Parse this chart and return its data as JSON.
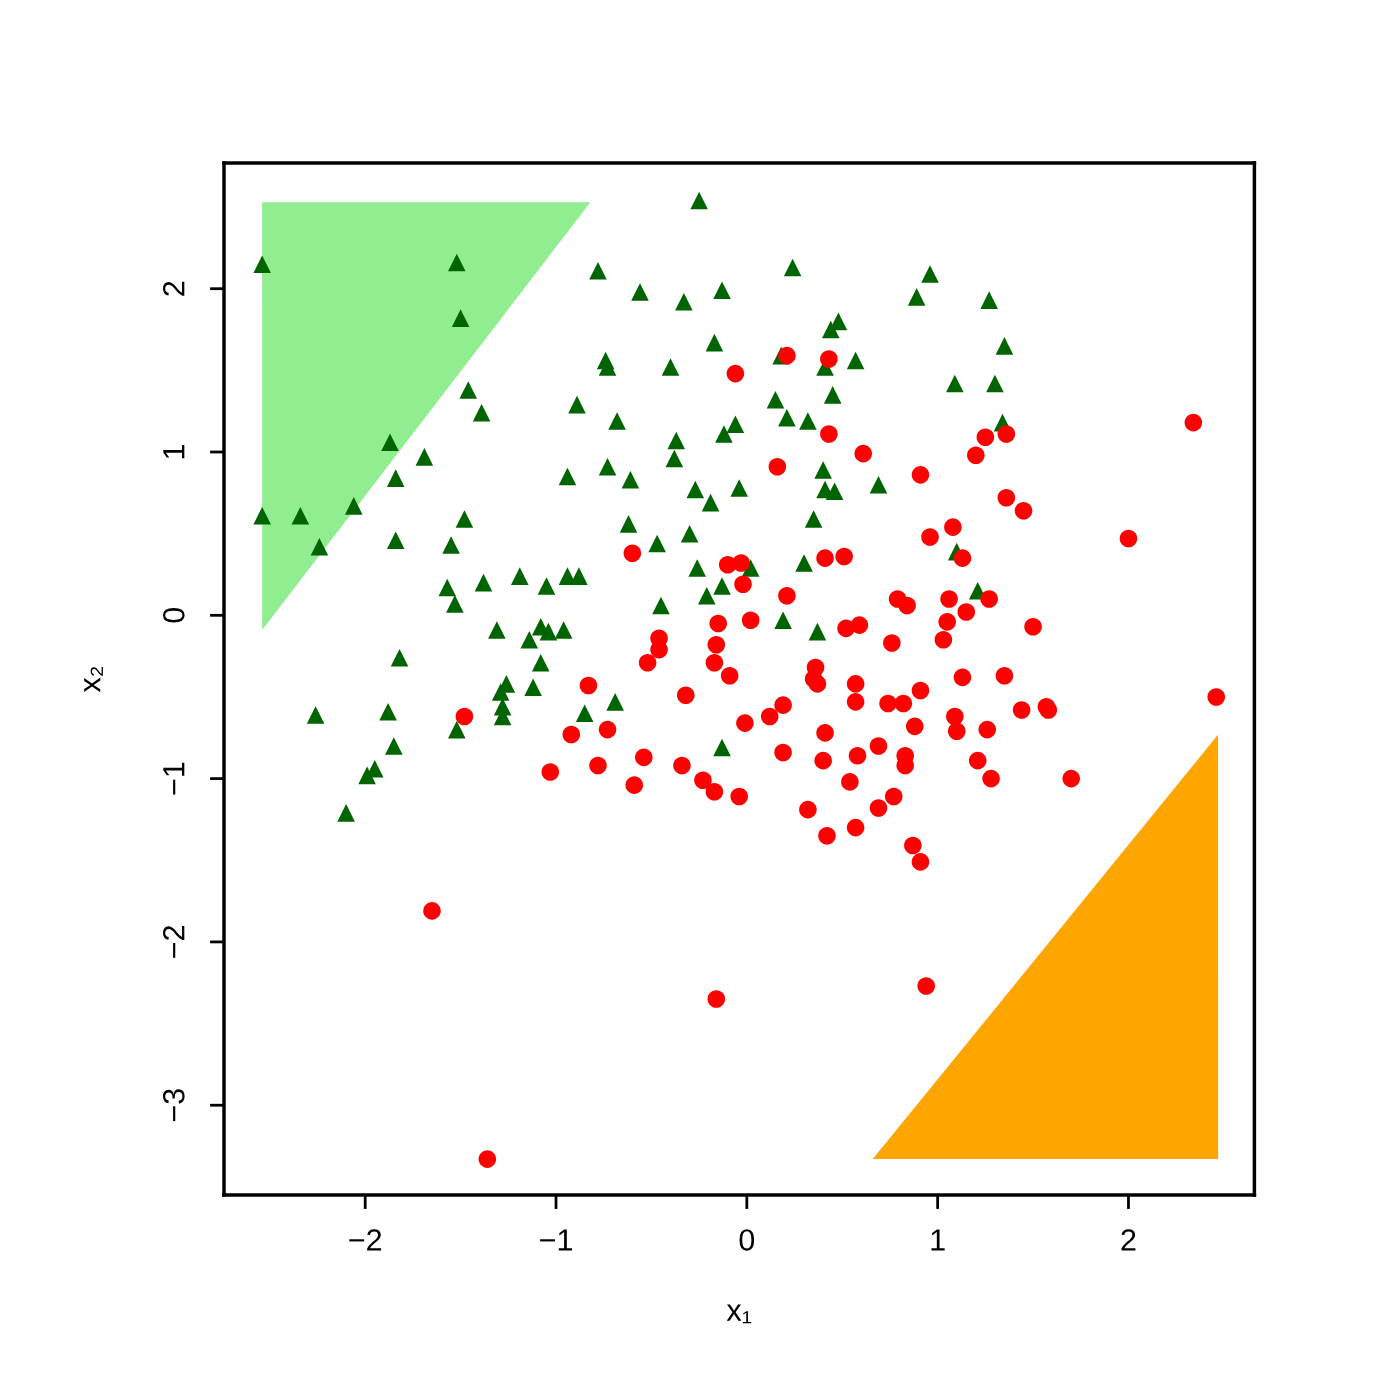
{
  "chart_data": {
    "type": "scatter",
    "xlabel": "x₁",
    "ylabel": "x₂",
    "xlim": [
      -2.74,
      2.66
    ],
    "ylim": [
      -3.55,
      2.77
    ],
    "xticks": [
      {
        "value": -2,
        "label": "−2"
      },
      {
        "value": -1,
        "label": "−1"
      },
      0,
      1,
      2
    ],
    "yticks": [
      {
        "value": -3,
        "label": "−3"
      },
      {
        "value": -2,
        "label": "−2"
      },
      {
        "value": -1,
        "label": "−1"
      },
      0,
      1,
      2
    ],
    "grid": false,
    "series": [
      {
        "type": "area",
        "color": "#90ee90",
        "x": [
          -2.54,
          -0.82,
          -2.54
        ],
        "values": [
          2.53,
          2.53,
          -0.09
        ]
      },
      {
        "type": "area",
        "color": "#ffa500",
        "x": [
          0.66,
          2.47,
          2.47
        ],
        "values": [
          -3.33,
          -3.33,
          -0.73
        ]
      },
      {
        "marker": "triangle",
        "color": "#006400",
        "x": [
          -2.54,
          -2.54,
          -2.34,
          -2.24,
          -2.26,
          -2.1,
          -1.99,
          -1.95,
          -1.88,
          -1.85,
          -1.87,
          -1.84,
          -1.84,
          -1.82,
          -1.69,
          -2.06,
          -1.52,
          -1.5,
          -1.46,
          -1.39,
          -1.48,
          -1.55,
          -1.57,
          -1.53,
          -1.38,
          -1.52,
          -1.31,
          -1.29,
          -1.28,
          -1.28,
          -1.26,
          -1.19,
          -1.14,
          -1.12,
          -1.08,
          -1.08,
          -1.05,
          -1.04,
          -0.96,
          -0.94,
          -0.94,
          -0.88,
          -0.89,
          -0.85,
          -0.78,
          -0.74,
          -0.73,
          -0.73,
          -0.68,
          -0.69,
          -0.62,
          -0.61,
          -0.56,
          -0.47,
          -0.45,
          -0.4,
          -0.38,
          -0.37,
          -0.33,
          -0.3,
          -0.26,
          -0.27,
          -0.25,
          -0.21,
          -0.19,
          -0.17,
          -0.13,
          -0.13,
          -0.13,
          -0.12,
          -0.06,
          -0.04,
          0.02,
          0.15,
          0.18,
          0.21,
          0.19,
          0.24,
          0.3,
          0.32,
          0.35,
          0.37,
          0.4,
          0.41,
          0.41,
          0.44,
          0.46,
          0.48,
          0.45,
          0.57,
          0.69,
          0.89,
          0.96,
          1.09,
          1.1,
          1.21,
          1.27,
          1.3,
          1.35,
          1.34
        ],
        "values": [
          2.15,
          0.61,
          0.61,
          0.42,
          -0.61,
          -1.21,
          -0.98,
          -0.94,
          -0.59,
          -0.8,
          1.06,
          0.84,
          0.46,
          -0.26,
          0.97,
          0.67,
          2.16,
          1.82,
          1.38,
          1.24,
          0.59,
          0.43,
          0.17,
          0.07,
          0.2,
          -0.7,
          -0.09,
          -0.47,
          -0.56,
          -0.62,
          -0.42,
          0.24,
          -0.15,
          -0.44,
          -0.29,
          -0.07,
          0.18,
          -0.1,
          -0.09,
          0.24,
          0.85,
          0.24,
          1.29,
          -0.6,
          2.11,
          1.56,
          1.52,
          0.91,
          1.19,
          -0.53,
          0.56,
          0.83,
          1.98,
          0.44,
          0.06,
          1.52,
          0.96,
          1.07,
          1.92,
          0.5,
          0.29,
          0.77,
          2.54,
          0.12,
          0.69,
          1.67,
          1.99,
          -0.81,
          0.18,
          1.11,
          1.17,
          0.78,
          0.29,
          1.32,
          1.59,
          1.21,
          -0.03,
          2.13,
          0.32,
          1.19,
          0.59,
          -0.1,
          0.89,
          1.52,
          0.77,
          1.75,
          0.76,
          1.8,
          1.35,
          1.56,
          0.8,
          1.95,
          2.09,
          1.42,
          0.39,
          0.15,
          1.93,
          1.42,
          1.65,
          1.18
        ]
      },
      {
        "marker": "circle",
        "color": "#ff0000",
        "x": [
          -1.65,
          -1.48,
          -1.36,
          -1.03,
          -0.92,
          -0.83,
          -0.78,
          -0.73,
          -0.6,
          -0.59,
          -0.54,
          -0.52,
          -0.46,
          -0.46,
          -0.32,
          -0.34,
          -0.23,
          -0.17,
          -0.17,
          -0.16,
          -0.15,
          -0.16,
          -0.1,
          -0.09,
          -0.06,
          -0.04,
          -0.03,
          -0.02,
          -0.01,
          0.02,
          0.12,
          0.16,
          0.19,
          0.19,
          0.21,
          0.21,
          0.32,
          0.35,
          0.36,
          0.37,
          0.41,
          0.41,
          0.4,
          0.42,
          0.43,
          0.43,
          0.51,
          0.52,
          0.54,
          0.57,
          0.57,
          0.57,
          0.58,
          0.59,
          0.61,
          0.69,
          0.69,
          0.76,
          0.77,
          0.74,
          0.79,
          0.82,
          0.83,
          0.83,
          0.84,
          0.87,
          0.88,
          0.91,
          0.91,
          0.91,
          0.94,
          0.96,
          1.03,
          1.05,
          1.06,
          1.08,
          1.09,
          1.1,
          1.13,
          1.13,
          1.15,
          1.2,
          1.21,
          1.25,
          1.26,
          1.27,
          1.28,
          1.35,
          1.36,
          1.36,
          1.44,
          1.45,
          1.5,
          1.57,
          1.58,
          1.7,
          2.0,
          2.34,
          2.46
        ],
        "values": [
          -1.81,
          -0.62,
          -3.33,
          -0.96,
          -0.73,
          -0.43,
          -0.92,
          -0.7,
          0.38,
          -1.04,
          -0.87,
          -0.29,
          -0.14,
          -0.21,
          -0.49,
          -0.92,
          -1.01,
          -1.08,
          -0.29,
          -0.18,
          -0.05,
          -2.35,
          0.31,
          -0.37,
          1.48,
          -1.11,
          0.32,
          0.19,
          -0.66,
          -0.03,
          -0.62,
          0.91,
          -0.55,
          -0.84,
          1.59,
          0.12,
          -1.19,
          -0.39,
          -0.32,
          -0.42,
          0.35,
          -0.72,
          -0.89,
          -1.35,
          1.57,
          1.11,
          0.36,
          -0.08,
          -1.02,
          -1.3,
          -0.42,
          -0.53,
          -0.86,
          -0.06,
          0.99,
          -0.8,
          -1.18,
          -0.17,
          -1.11,
          -0.54,
          0.1,
          -0.54,
          -0.92,
          -0.86,
          0.06,
          -1.41,
          -0.68,
          -1.51,
          -0.46,
          0.86,
          -2.27,
          0.48,
          -0.15,
          -0.04,
          0.1,
          0.54,
          -0.62,
          -0.71,
          0.35,
          -0.38,
          0.02,
          0.98,
          -0.89,
          1.09,
          -0.7,
          0.1,
          -1.0,
          -0.37,
          1.11,
          0.72,
          -0.58,
          0.64,
          -0.07,
          -0.56,
          -0.58,
          -1.0,
          0.47,
          1.18,
          -0.5
        ]
      }
    ]
  }
}
